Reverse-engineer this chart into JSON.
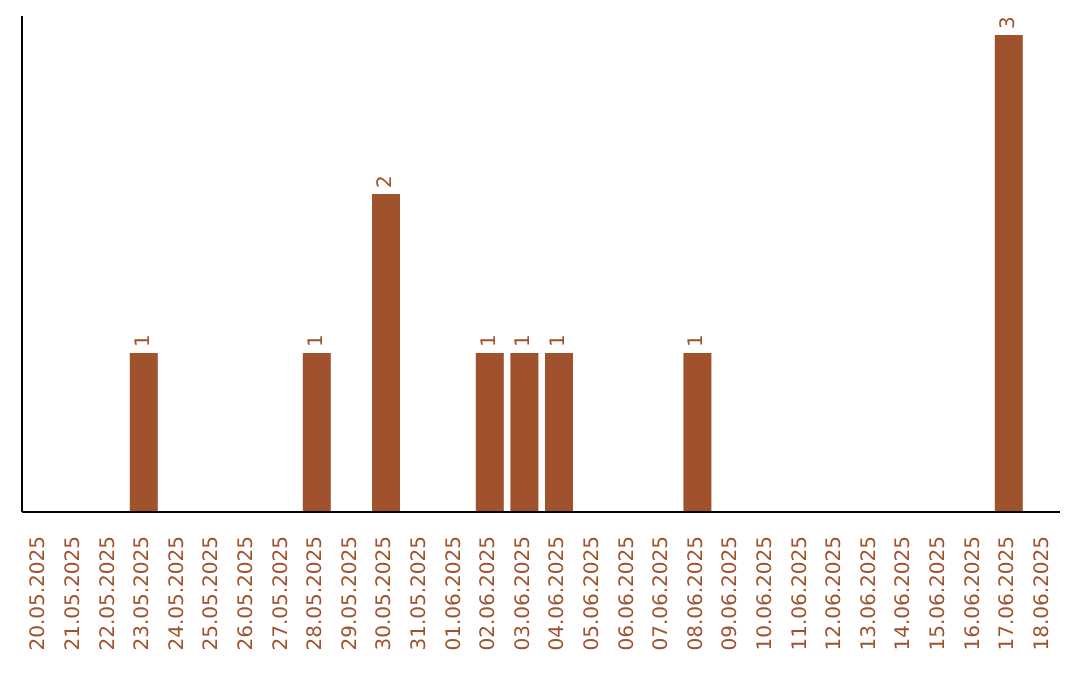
{
  "chart_data": {
    "type": "bar",
    "categories": [
      "20.05.2025",
      "21.05.2025",
      "22.05.2025",
      "23.05.2025",
      "24.05.2025",
      "25.05.2025",
      "26.05.2025",
      "27.05.2025",
      "28.05.2025",
      "29.05.2025",
      "30.05.2025",
      "31.05.2025",
      "01.06.2025",
      "02.06.2025",
      "03.06.2025",
      "04.06.2025",
      "05.06.2025",
      "06.06.2025",
      "07.06.2025",
      "08.06.2025",
      "09.06.2025",
      "10.06.2025",
      "11.06.2025",
      "12.06.2025",
      "13.06.2025",
      "14.06.2025",
      "15.06.2025",
      "16.06.2025",
      "17.06.2025",
      "18.06.2025"
    ],
    "values": [
      0,
      0,
      0,
      1,
      0,
      0,
      0,
      0,
      1,
      0,
      2,
      0,
      0,
      1,
      1,
      1,
      0,
      0,
      0,
      1,
      0,
      0,
      0,
      0,
      0,
      0,
      0,
      0,
      3,
      0
    ],
    "value_labels": [
      null,
      null,
      null,
      "1",
      null,
      null,
      null,
      null,
      "1",
      null,
      "2",
      null,
      null,
      "1",
      "1",
      "1",
      null,
      null,
      null,
      "1",
      null,
      null,
      null,
      null,
      null,
      null,
      null,
      null,
      "3",
      null
    ],
    "color": "#a0522d",
    "grid": false,
    "legend": false
  }
}
